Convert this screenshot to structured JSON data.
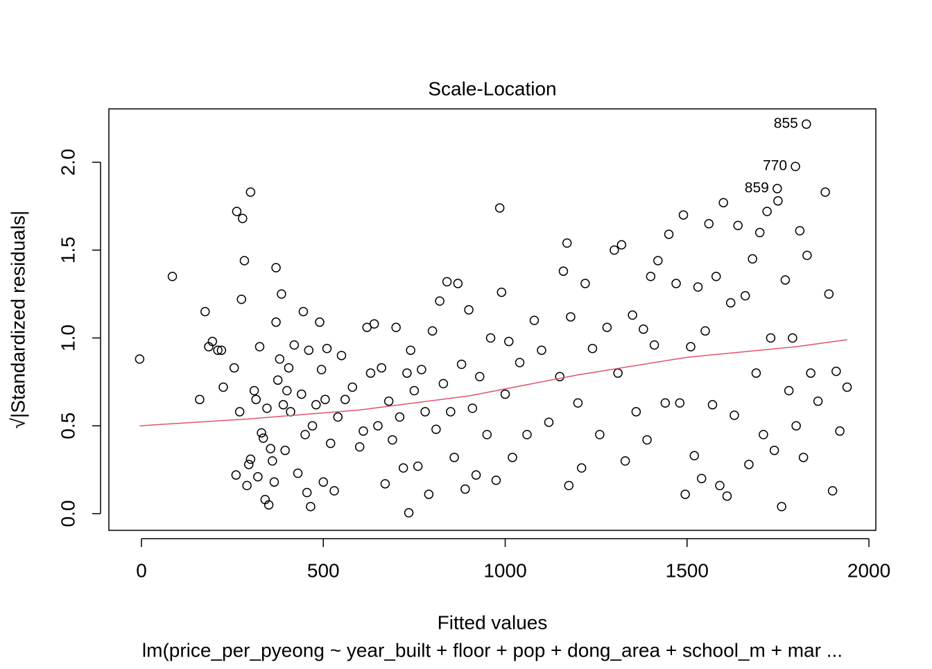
{
  "chart_data": {
    "type": "scatter",
    "title": "Scale-Location",
    "xlabel": "Fitted values",
    "subtitle": "lm(price_per_pyeong ~ year_built + floor + pop + dong_area + school_m + mar ...",
    "ylabel": "√|Standardized residuals|",
    "xlim": [
      -89.6,
      2019
    ],
    "ylim": [
      -0.095,
      2.304
    ],
    "xticks": [
      0,
      500,
      1000,
      1500,
      2000
    ],
    "yticks": [
      {
        "value": 0,
        "label": "0.0"
      },
      {
        "value": 0.5,
        "label": "0.5"
      },
      {
        "value": 1,
        "label": "1.0"
      },
      {
        "value": 1.5,
        "label": "1.5"
      },
      {
        "value": 2,
        "label": "2.0"
      }
    ],
    "color": "#000000",
    "x": [
      -5,
      85,
      160,
      175,
      185,
      195,
      210,
      220,
      225,
      255,
      260,
      262,
      270,
      275,
      278,
      283,
      290,
      295,
      300,
      300,
      310,
      315,
      320,
      325,
      330,
      335,
      340,
      345,
      350,
      355,
      360,
      365,
      370,
      370,
      375,
      380,
      385,
      390,
      395,
      400,
      405,
      410,
      420,
      430,
      440,
      445,
      450,
      455,
      460,
      465,
      470,
      480,
      490,
      495,
      500,
      505,
      510,
      520,
      530,
      540,
      550,
      560,
      580,
      600,
      610,
      620,
      630,
      640,
      650,
      660,
      670,
      680,
      690,
      700,
      710,
      720,
      730,
      735,
      740,
      750,
      760,
      770,
      780,
      790,
      800,
      810,
      820,
      830,
      840,
      850,
      860,
      870,
      880,
      890,
      900,
      910,
      920,
      930,
      950,
      960,
      975,
      985,
      990,
      1000,
      1010,
      1020,
      1040,
      1060,
      1080,
      1100,
      1120,
      1150,
      1160,
      1170,
      1175,
      1180,
      1200,
      1210,
      1220,
      1240,
      1260,
      1280,
      1300,
      1310,
      1320,
      1330,
      1350,
      1360,
      1380,
      1390,
      1400,
      1410,
      1420,
      1440,
      1450,
      1470,
      1480,
      1490,
      1495,
      1510,
      1520,
      1530,
      1540,
      1550,
      1560,
      1570,
      1580,
      1590,
      1600,
      1610,
      1620,
      1630,
      1640,
      1660,
      1670,
      1680,
      1690,
      1700,
      1710,
      1720,
      1730,
      1740,
      1750,
      1760,
      1770,
      1780,
      1790,
      1800,
      1810,
      1820,
      1830,
      1840,
      1860,
      1880,
      1890,
      1900,
      1910,
      1920,
      1940
    ],
    "y": [
      0.88,
      1.35,
      0.65,
      1.15,
      0.95,
      0.98,
      0.93,
      0.93,
      0.72,
      0.83,
      0.22,
      1.72,
      0.58,
      1.22,
      1.68,
      1.44,
      0.16,
      0.28,
      1.83,
      0.31,
      0.7,
      0.65,
      0.21,
      0.95,
      0.46,
      0.43,
      0.08,
      0.6,
      0.05,
      0.37,
      0.3,
      0.18,
      1.09,
      1.4,
      0.76,
      0.88,
      1.25,
      0.62,
      0.36,
      0.7,
      0.83,
      0.58,
      0.96,
      0.23,
      0.68,
      1.15,
      0.45,
      0.12,
      0.93,
      0.04,
      0.5,
      0.62,
      1.09,
      0.82,
      0.18,
      0.65,
      0.94,
      0.4,
      0.13,
      0.55,
      0.9,
      0.65,
      0.72,
      0.38,
      0.47,
      1.06,
      0.8,
      1.08,
      0.5,
      0.83,
      0.17,
      0.64,
      0.42,
      1.06,
      0.55,
      0.26,
      0.8,
      0.005,
      0.93,
      0.7,
      0.27,
      0.82,
      0.58,
      0.11,
      1.04,
      0.48,
      1.21,
      0.74,
      1.32,
      0.58,
      0.32,
      1.31,
      0.85,
      0.14,
      1.16,
      0.6,
      0.22,
      0.78,
      0.45,
      1.0,
      0.19,
      1.74,
      1.26,
      0.68,
      0.98,
      0.32,
      0.86,
      0.45,
      1.1,
      0.93,
      0.52,
      0.78,
      1.38,
      1.54,
      0.16,
      1.12,
      0.63,
      0.26,
      1.31,
      0.94,
      0.45,
      1.06,
      1.5,
      0.8,
      1.53,
      0.3,
      1.13,
      0.58,
      1.05,
      0.42,
      1.35,
      0.96,
      1.44,
      0.63,
      1.59,
      1.31,
      0.63,
      1.7,
      0.11,
      0.95,
      0.33,
      1.29,
      0.2,
      1.04,
      1.65,
      0.62,
      1.35,
      0.16,
      1.77,
      0.1,
      1.2,
      0.56,
      1.64,
      1.24,
      0.28,
      1.45,
      0.8,
      1.6,
      0.45,
      1.72,
      1.0,
      0.36,
      1.78,
      0.04,
      1.33,
      0.7,
      1.0,
      0.5,
      1.61,
      0.32,
      1.47,
      0.8,
      0.64,
      1.83,
      1.25,
      0.13,
      0.81,
      0.47,
      0.72
    ],
    "annotations": [
      {
        "text": "855",
        "x": 1828,
        "y": 2.217
      },
      {
        "text": "770",
        "x": 1798,
        "y": 1.976
      },
      {
        "text": "859",
        "x": 1748,
        "y": 1.85
      }
    ],
    "smooth": {
      "color": "#df536b",
      "x": [
        -5,
        300,
        600,
        900,
        1200,
        1500,
        1800,
        1940
      ],
      "y": [
        0.5,
        0.54,
        0.59,
        0.67,
        0.79,
        0.89,
        0.95,
        0.99
      ]
    }
  }
}
